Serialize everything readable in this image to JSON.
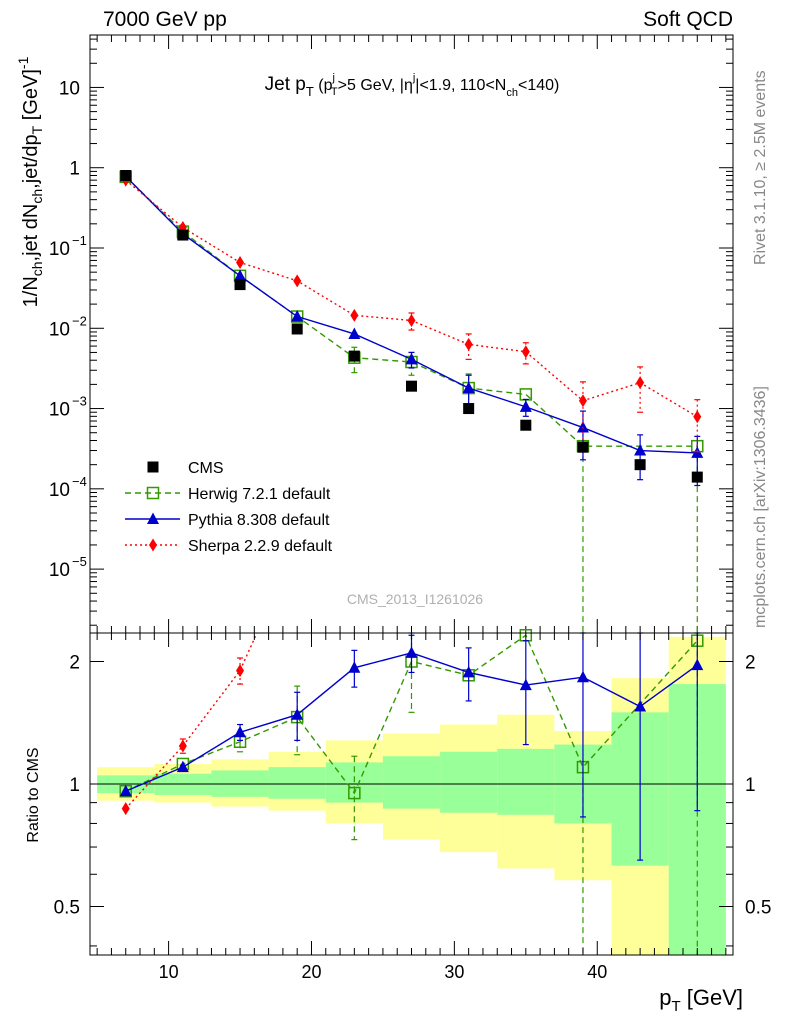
{
  "header": {
    "left": "7000 GeV pp",
    "right": "Soft QCD"
  },
  "side_texts": {
    "rivet": "Rivet 3.1.10, ≥ 2.5M events",
    "mcplots": "mcplots.cern.ch [arXiv:1306.3436]"
  },
  "watermark": "CMS_2013_I1261026",
  "chart_data": {
    "type": "line",
    "title": "Jet pT (pTj>5 GeV, |ηj|<1.9, 110<Nch<140)",
    "title_parts": {
      "main": "Jet p",
      "sub_t": "T",
      "cut_open": " (p",
      "cut_sup": "j",
      "cut_sub": "T",
      "cut_mid": ">5 GeV, |η",
      "eta_sup": "j",
      "cut_mid2": "|<1.9, 110<N",
      "nch_sub": "ch",
      "cut_close": "<140)"
    },
    "xlabel": "pT [GeV]",
    "xlabel_parts": {
      "main": "p",
      "sub": "T",
      "unit": " [GeV]"
    },
    "ylabel": "1/Nch,jet dNch,jet/dpT [GeV]^-1",
    "ylabel_parts": {
      "a": "1/N",
      "a_sub": "ch",
      "b": ",jet dN",
      "b_sub": "ch",
      "c": ",jet/dp",
      "c_sub": "T",
      "d": " [GeV]",
      "d_sup": "-1"
    },
    "ratio_ylabel": "Ratio to CMS",
    "xlim": [
      4.5,
      49.5
    ],
    "ylim": [
      1.6e-06,
      45
    ],
    "yscale": "log",
    "ratio_ylim": [
      0.38,
      2.35
    ],
    "ratio_yscale": "log",
    "xticks": [
      "10",
      "20",
      "30",
      "40"
    ],
    "xtick_values": [
      10,
      20,
      30,
      40
    ],
    "yticks_main": [
      {
        "v": 10,
        "base": "10",
        "exp": ""
      },
      {
        "v": 1,
        "base": "1",
        "exp": ""
      },
      {
        "v": 0.1,
        "base": "10",
        "exp": "−1"
      },
      {
        "v": 0.01,
        "base": "10",
        "exp": "−2"
      },
      {
        "v": 0.001,
        "base": "10",
        "exp": "−3"
      },
      {
        "v": 0.0001,
        "base": "10",
        "exp": "−4"
      },
      {
        "v": 1e-05,
        "base": "10",
        "exp": "−5"
      }
    ],
    "yticks_ratio": [
      {
        "v": 0.5,
        "label": "0.5"
      },
      {
        "v": 1,
        "label": "1"
      },
      {
        "v": 2,
        "label": "2"
      }
    ],
    "bins": [
      [
        5,
        9
      ],
      [
        9,
        13
      ],
      [
        13,
        17
      ],
      [
        17,
        21
      ],
      [
        21,
        25
      ],
      [
        25,
        29
      ],
      [
        29,
        33
      ],
      [
        33,
        37
      ],
      [
        37,
        41
      ],
      [
        41,
        45
      ],
      [
        45,
        49
      ]
    ],
    "x": [
      7,
      11,
      15,
      19,
      23,
      27,
      31,
      35,
      39,
      43,
      47
    ],
    "cms_band": {
      "green": [
        [
          0.95,
          1.05
        ],
        [
          0.94,
          1.06
        ],
        [
          0.93,
          1.08
        ],
        [
          0.92,
          1.1
        ],
        [
          0.9,
          1.13
        ],
        [
          0.87,
          1.17
        ],
        [
          0.85,
          1.2
        ],
        [
          0.84,
          1.22
        ],
        [
          0.8,
          1.25
        ],
        [
          0.63,
          1.5
        ],
        [
          0.38,
          1.76
        ]
      ],
      "yellow": [
        [
          0.91,
          1.1
        ],
        [
          0.9,
          1.12
        ],
        [
          0.88,
          1.15
        ],
        [
          0.86,
          1.2
        ],
        [
          0.8,
          1.28
        ],
        [
          0.73,
          1.33
        ],
        [
          0.68,
          1.4
        ],
        [
          0.62,
          1.48
        ],
        [
          0.58,
          1.35
        ],
        [
          0.38,
          1.82
        ],
        [
          0.38,
          2.3
        ]
      ]
    },
    "legend": {
      "position": "lower-left",
      "entries": [
        "CMS",
        "Herwig 7.2.1 default",
        "Pythia 8.308 default",
        "Sherpa 2.2.9 default"
      ]
    },
    "series": [
      {
        "name": "CMS",
        "color": "#000000",
        "marker": "square-filled",
        "values": [
          0.8,
          0.145,
          0.035,
          0.0098,
          0.0045,
          0.0019,
          0.001,
          0.00062,
          0.00033,
          0.0002,
          0.00014
        ],
        "ratio": null
      },
      {
        "name": "Herwig 7.2.1 default",
        "color": "#339900",
        "marker": "square-open",
        "linestyle": "dashed",
        "values": [
          0.77,
          0.16,
          0.045,
          0.014,
          0.0043,
          0.0038,
          0.0018,
          0.0015,
          0.00034,
          null,
          0.00034
        ],
        "errors": [
          null,
          null,
          null,
          null,
          0.0015,
          0.0012,
          0.0009,
          null,
          null,
          null,
          null
        ],
        "ratio": [
          0.96,
          1.12,
          1.27,
          1.46,
          0.95,
          2.0,
          1.85,
          2.32,
          1.1,
          null,
          2.25
        ],
        "ratio_errors": [
          null,
          null,
          0.07,
          0.28,
          0.22,
          0.5,
          null,
          null,
          null,
          null,
          null
        ]
      },
      {
        "name": "Pythia 8.308 default",
        "color": "#0000cc",
        "marker": "triangle-filled",
        "linestyle": "solid",
        "values": [
          0.78,
          0.15,
          0.045,
          0.014,
          0.0085,
          0.0041,
          0.0018,
          0.00105,
          0.00058,
          0.0003,
          0.00028
        ],
        "errors": [
          null,
          null,
          null,
          null,
          null,
          0.0009,
          0.0008,
          0.00025,
          0.00035,
          0.00017,
          0.00017
        ],
        "ratio": [
          0.96,
          1.1,
          1.34,
          1.48,
          1.93,
          2.1,
          1.88,
          1.75,
          1.83,
          1.55,
          1.96
        ],
        "ratio_errors": [
          null,
          null,
          0.06,
          0.2,
          0.2,
          0.22,
          0.28,
          0.5,
          1.0,
          0.9,
          1.1
        ]
      },
      {
        "name": "Sherpa 2.2.9 default",
        "color": "#ff0000",
        "marker": "diamond-filled",
        "linestyle": "dotted",
        "values": [
          0.7,
          0.18,
          0.066,
          0.039,
          0.0145,
          0.0125,
          0.0063,
          0.0051,
          0.00125,
          0.0021,
          0.00079
        ],
        "errors": [
          null,
          null,
          null,
          null,
          null,
          0.003,
          0.0022,
          0.0015,
          0.0009,
          0.0012,
          0.0005
        ],
        "ratio": [
          0.87,
          1.24,
          1.9,
          3.9,
          null,
          null,
          null,
          null,
          null,
          null,
          null
        ],
        "ratio_errors": [
          null,
          0.05,
          0.14,
          null,
          null,
          null,
          null,
          null,
          null,
          null,
          null
        ]
      }
    ]
  }
}
